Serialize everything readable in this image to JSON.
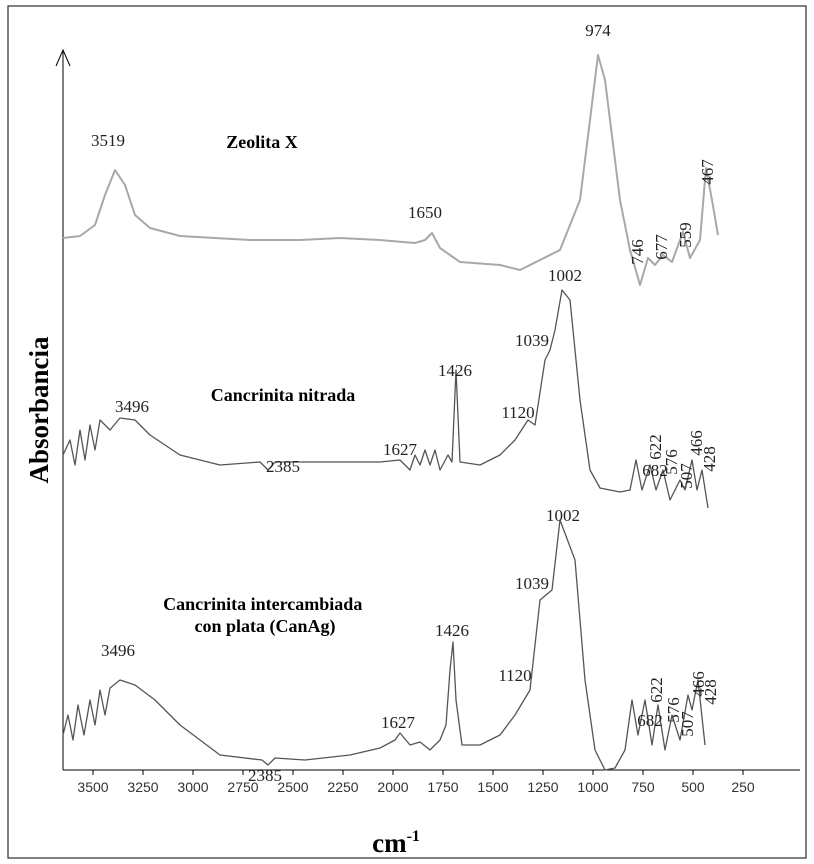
{
  "chart_data": {
    "type": "line",
    "ylabel": "Absorbancia",
    "xlabel": "cm",
    "xlabel_exponent": "-1",
    "xlim": [
      3650,
      0
    ],
    "ylim": [
      0,
      720
    ],
    "xticks": [
      3500,
      3250,
      3000,
      2750,
      2500,
      2250,
      2000,
      1750,
      1500,
      1250,
      1000,
      750,
      500,
      250
    ],
    "series": [
      {
        "name": "Zeolita X",
        "color": "#a8a8a8",
        "x": [
          3650,
          3565,
          3490,
          3440,
          3390,
          3340,
          3290,
          3215,
          3065,
          2715,
          2465,
          2265,
          2065,
          1890,
          1840,
          1805,
          1765,
          1665,
          1465,
          1365,
          1315,
          1165,
          1065,
          1015,
          975,
          940,
          865,
          815,
          765,
          725,
          690,
          650,
          605,
          550,
          515,
          465,
          435,
          405,
          375
        ],
        "values": [
          532,
          534,
          545,
          575,
          600,
          585,
          555,
          542,
          534,
          530,
          530,
          532,
          530,
          527,
          530,
          537,
          522,
          508,
          505,
          500,
          505,
          520,
          570,
          650,
          715,
          690,
          570,
          520,
          485,
          512,
          505,
          515,
          508,
          538,
          512,
          530,
          602,
          570,
          535
        ],
        "peaks": [
          "3519",
          "1650",
          "974",
          "746",
          "677",
          "559",
          "467"
        ]
      },
      {
        "name": "Cancrinita nitrada",
        "color": "#555555",
        "x": [
          3650,
          3615,
          3590,
          3565,
          3540,
          3515,
          3490,
          3465,
          3415,
          3365,
          3290,
          3215,
          3065,
          2865,
          2665,
          2625,
          2590,
          2365,
          2065,
          1965,
          1915,
          1890,
          1865,
          1840,
          1815,
          1790,
          1765,
          1725,
          1705,
          1685,
          1665,
          1565,
          1465,
          1390,
          1325,
          1290,
          1240,
          1215,
          1190,
          1155,
          1115,
          1065,
          1015,
          965,
          865,
          815,
          785,
          755,
          715,
          685,
          650,
          615,
          565,
          540,
          505,
          480,
          455,
          425
        ],
        "values": [
          315,
          330,
          305,
          340,
          310,
          345,
          320,
          350,
          340,
          352,
          350,
          335,
          315,
          305,
          308,
          300,
          308,
          308,
          308,
          310,
          300,
          315,
          305,
          320,
          305,
          320,
          300,
          315,
          308,
          400,
          308,
          305,
          315,
          330,
          350,
          345,
          410,
          420,
          440,
          480,
          470,
          370,
          300,
          282,
          278,
          280,
          310,
          280,
          305,
          280,
          300,
          270,
          290,
          280,
          310,
          280,
          300,
          262
        ],
        "peaks": [
          "3496",
          "2385",
          "1627",
          "1426",
          "1120",
          "1039",
          "1002",
          "682",
          "622",
          "576",
          "507",
          "466",
          "428"
        ]
      },
      {
        "name": "Cancrinita intercambiada con plata (CanAg)",
        "color": "#555555",
        "x": [
          3650,
          3625,
          3600,
          3575,
          3545,
          3515,
          3490,
          3465,
          3440,
          3415,
          3365,
          3290,
          3190,
          3065,
          2865,
          2655,
          2625,
          2590,
          2440,
          2215,
          2065,
          1990,
          1965,
          1915,
          1865,
          1815,
          1765,
          1735,
          1715,
          1700,
          1685,
          1655,
          1565,
          1465,
          1390,
          1315,
          1265,
          1205,
          1165,
          1090,
          1040,
          990,
          940,
          890,
          840,
          805,
          775,
          740,
          705,
          675,
          640,
          605,
          565,
          525,
          505,
          475,
          440
        ],
        "values": [
          35,
          55,
          30,
          65,
          35,
          70,
          45,
          80,
          55,
          82,
          90,
          85,
          70,
          45,
          15,
          10,
          5,
          12,
          10,
          15,
          22,
          30,
          37,
          25,
          28,
          20,
          30,
          45,
          100,
          128,
          70,
          25,
          25,
          35,
          55,
          80,
          170,
          180,
          250,
          210,
          90,
          20,
          0,
          2,
          20,
          70,
          35,
          70,
          25,
          65,
          20,
          55,
          30,
          75,
          60,
          90,
          25
        ],
        "peaks": [
          "3496",
          "2385",
          "1627",
          "1426",
          "1120",
          "1039",
          "1002",
          "682",
          "622",
          "576",
          "507",
          "466",
          "428"
        ]
      }
    ]
  }
}
